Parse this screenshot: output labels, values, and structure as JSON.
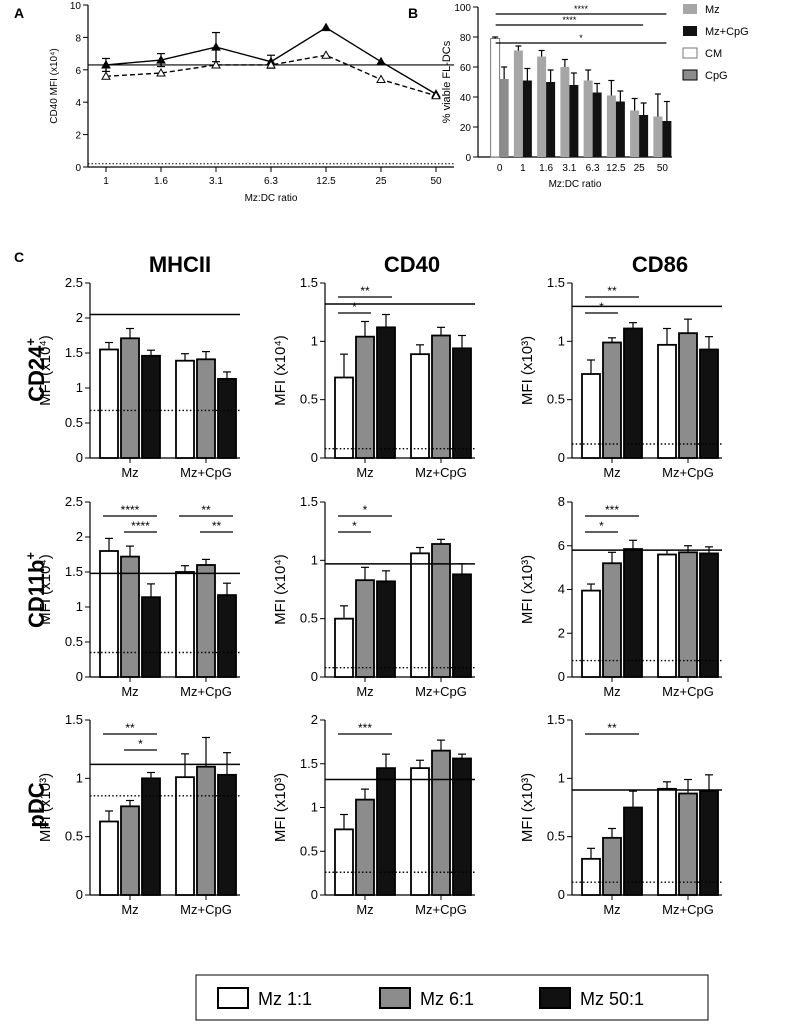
{
  "colors": {
    "white_bar": "#ffffff",
    "gray_bar": "#8c8c8c",
    "black_bar": "#111111",
    "light_gray": "#a6a6a6",
    "stroke": "#000000"
  },
  "panel_labels": {
    "a": "A",
    "b": "B",
    "c": "C"
  },
  "legend_bottom": [
    "Mz 1:1",
    "Mz 6:1",
    "Mz 50:1"
  ],
  "col_titles": [
    "MHCII",
    "CD40",
    "CD86"
  ],
  "row_titles": [
    "CD24",
    "CD11b",
    "pDC"
  ],
  "row_sups": [
    "+",
    "+",
    ""
  ],
  "chart_data": [
    {
      "id": "A",
      "type": "line",
      "xlabel": "Mz:DC ratio",
      "ylabel": "CD40 MFI (x10⁴)",
      "categories": [
        "1",
        "1.6",
        "3.1",
        "6.3",
        "12.5",
        "25",
        "50"
      ],
      "ylim": [
        0,
        10
      ],
      "yticks": [
        "0",
        "2",
        "4",
        "6",
        "8",
        "10"
      ],
      "hline": 6.3,
      "dotted": 0.2,
      "series": [
        {
          "name": "Mz",
          "values": [
            6.3,
            6.6,
            7.4,
            6.5,
            8.6,
            6.5,
            4.5
          ],
          "errors": [
            0.4,
            0.4,
            0.9,
            0.4,
            0,
            0,
            0
          ],
          "marker": "filled",
          "dash": false
        },
        {
          "name": "Mz+CpG",
          "values": [
            5.6,
            5.8,
            6.3,
            6.3,
            6.9,
            5.4,
            4.4
          ],
          "errors": [
            0,
            0,
            0,
            0,
            0,
            0,
            0
          ],
          "marker": "open",
          "dash": true
        }
      ]
    },
    {
      "id": "B",
      "type": "bar",
      "xlabel": "Mz:DC ratio",
      "ylabel": "% viable FL-DCs",
      "categories": [
        "0",
        "1",
        "1.6",
        "3.1",
        "6.3",
        "12.5",
        "25",
        "50"
      ],
      "ylim": [
        0,
        100
      ],
      "yticks": [
        "0",
        "20",
        "40",
        "60",
        "80",
        "100"
      ],
      "legend": [
        "Mz",
        "Mz+CpG",
        "CM",
        "CpG"
      ],
      "pairs": [
        [
          79,
          52
        ],
        [
          71,
          51
        ],
        [
          67,
          50
        ],
        [
          60,
          48
        ],
        [
          51,
          43
        ],
        [
          41,
          37
        ],
        [
          31,
          28
        ],
        [
          27,
          24
        ]
      ],
      "errors": [
        [
          1,
          8
        ],
        [
          3,
          8
        ],
        [
          4,
          8
        ],
        [
          5,
          8
        ],
        [
          7,
          6
        ],
        [
          10,
          7
        ],
        [
          8,
          8
        ],
        [
          15,
          13
        ]
      ],
      "sig": [
        {
          "label": "****",
          "from": 0,
          "to": 7
        },
        {
          "label": "****",
          "from": 0,
          "to": 6
        },
        {
          "label": "*",
          "from": 0,
          "to": 7
        }
      ]
    },
    {
      "id": "C-CD24-MHCII",
      "type": "bar",
      "ylabel": "MFI (x10⁴)",
      "groups": [
        "Mz",
        "Mz+CpG"
      ],
      "ylim": [
        0,
        2.5
      ],
      "yticks": [
        "0",
        "0.5",
        "1",
        "1.5",
        "2",
        "2.5"
      ],
      "hline": 2.05,
      "dotted": 0.68,
      "values": [
        [
          1.55,
          1.71,
          1.46
        ],
        [
          1.39,
          1.41,
          1.13
        ]
      ],
      "errors": [
        [
          0.1,
          0.14,
          0.08
        ],
        [
          0.1,
          0.11,
          0.1
        ]
      ],
      "sig": []
    },
    {
      "id": "C-CD24-CD40",
      "type": "bar",
      "ylabel": "MFI (x10⁴)",
      "groups": [
        "Mz",
        "Mz+CpG"
      ],
      "ylim": [
        0,
        1.5
      ],
      "yticks": [
        "0",
        "0.5",
        "1",
        "1.5"
      ],
      "hline": 1.32,
      "dotted": 0.08,
      "values": [
        [
          0.69,
          1.04,
          1.12
        ],
        [
          0.89,
          1.05,
          0.94
        ]
      ],
      "errors": [
        [
          0.2,
          0.13,
          0.11
        ],
        [
          0.08,
          0.07,
          0.11
        ]
      ],
      "sig": [
        {
          "label": "**",
          "g": 0,
          "from": 0,
          "to": 2
        },
        {
          "label": "*",
          "g": 0,
          "from": 0,
          "to": 1
        }
      ]
    },
    {
      "id": "C-CD24-CD86",
      "type": "bar",
      "ylabel": "MFI (x10³)",
      "groups": [
        "Mz",
        "Mz+CpG"
      ],
      "ylim": [
        0,
        1.5
      ],
      "yticks": [
        "0",
        "0.5",
        "1",
        "1.5"
      ],
      "hline": 1.3,
      "dotted": 0.12,
      "values": [
        [
          0.72,
          0.99,
          1.11
        ],
        [
          0.97,
          1.07,
          0.93
        ]
      ],
      "errors": [
        [
          0.12,
          0.04,
          0.05
        ],
        [
          0.14,
          0.12,
          0.11
        ]
      ],
      "sig": [
        {
          "label": "**",
          "g": 0,
          "from": 0,
          "to": 2
        },
        {
          "label": "*",
          "g": 0,
          "from": 0,
          "to": 1
        }
      ]
    },
    {
      "id": "C-CD11b-MHCII",
      "type": "bar",
      "ylabel": "MFI (x10⁴)",
      "groups": [
        "Mz",
        "Mz+CpG"
      ],
      "ylim": [
        0,
        2.5
      ],
      "yticks": [
        "0",
        "0.5",
        "1",
        "1.5",
        "2",
        "2.5"
      ],
      "hline": 1.48,
      "dotted": 0.35,
      "values": [
        [
          1.8,
          1.72,
          1.14
        ],
        [
          1.5,
          1.6,
          1.17
        ]
      ],
      "errors": [
        [
          0.18,
          0.15,
          0.19
        ],
        [
          0.09,
          0.08,
          0.17
        ]
      ],
      "sig": [
        {
          "label": "****",
          "g": 0,
          "from": 0,
          "to": 2
        },
        {
          "label": "****",
          "g": 0,
          "from": 1,
          "to": 2
        },
        {
          "label": "**",
          "g": 1,
          "from": 0,
          "to": 2
        },
        {
          "label": "**",
          "g": 1,
          "from": 1,
          "to": 2
        }
      ]
    },
    {
      "id": "C-CD11b-CD40",
      "type": "bar",
      "ylabel": "MFI (x10⁴)",
      "groups": [
        "Mz",
        "Mz+CpG"
      ],
      "ylim": [
        0,
        1.5
      ],
      "yticks": [
        "0",
        "0.5",
        "1",
        "1.5"
      ],
      "hline": 0.97,
      "dotted": 0.08,
      "values": [
        [
          0.5,
          0.83,
          0.82
        ],
        [
          1.06,
          1.14,
          0.88
        ]
      ],
      "errors": [
        [
          0.11,
          0.11,
          0.09
        ],
        [
          0.05,
          0.04,
          0.09
        ]
      ],
      "sig": [
        {
          "label": "*",
          "g": 0,
          "from": 0,
          "to": 2
        },
        {
          "label": "*",
          "g": 0,
          "from": 0,
          "to": 1
        }
      ]
    },
    {
      "id": "C-CD11b-CD86",
      "type": "bar",
      "ylabel": "MFI (x10³)",
      "groups": [
        "Mz",
        "Mz+CpG"
      ],
      "ylim": [
        0,
        8
      ],
      "yticks": [
        "0",
        "2",
        "4",
        "6",
        "8"
      ],
      "hline": 5.8,
      "dotted": 0.75,
      "values": [
        [
          3.95,
          5.2,
          5.85
        ],
        [
          5.6,
          5.7,
          5.65
        ]
      ],
      "errors": [
        [
          0.3,
          0.5,
          0.4
        ],
        [
          0.2,
          0.3,
          0.3
        ]
      ],
      "sig": [
        {
          "label": "***",
          "g": 0,
          "from": 0,
          "to": 2
        },
        {
          "label": "*",
          "g": 0,
          "from": 0,
          "to": 1
        }
      ]
    },
    {
      "id": "C-pDC-MHCII",
      "type": "bar",
      "ylabel": "MFI (x10³)",
      "groups": [
        "Mz",
        "Mz+CpG"
      ],
      "ylim": [
        0,
        1.5
      ],
      "yticks": [
        "0",
        "0.5",
        "1",
        "1.5"
      ],
      "hline": 1.12,
      "dotted": 0.85,
      "values": [
        [
          0.63,
          0.76,
          1.0
        ],
        [
          1.01,
          1.1,
          1.03
        ]
      ],
      "errors": [
        [
          0.09,
          0.05,
          0.05
        ],
        [
          0.2,
          0.25,
          0.19
        ]
      ],
      "sig": [
        {
          "label": "**",
          "g": 0,
          "from": 0,
          "to": 2
        },
        {
          "label": "*",
          "g": 0,
          "from": 1,
          "to": 2
        }
      ]
    },
    {
      "id": "C-pDC-CD40",
      "type": "bar",
      "ylabel": "MFI (x10³)",
      "groups": [
        "Mz",
        "Mz+CpG"
      ],
      "ylim": [
        0,
        2
      ],
      "yticks": [
        "0",
        "0.5",
        "1",
        "1.5",
        "2"
      ],
      "hline": 1.32,
      "dotted": 0.26,
      "values": [
        [
          0.75,
          1.09,
          1.45
        ],
        [
          1.45,
          1.65,
          1.56
        ]
      ],
      "errors": [
        [
          0.17,
          0.12,
          0.16
        ],
        [
          0.09,
          0.12,
          0.05
        ]
      ],
      "sig": [
        {
          "label": "***",
          "g": 0,
          "from": 0,
          "to": 2
        }
      ]
    },
    {
      "id": "C-pDC-CD86",
      "type": "bar",
      "ylabel": "MFI (x10³)",
      "groups": [
        "Mz",
        "Mz+CpG"
      ],
      "ylim": [
        0,
        1.5
      ],
      "yticks": [
        "0",
        "0.5",
        "1",
        "1.5"
      ],
      "hline": 0.9,
      "dotted": 0.11,
      "values": [
        [
          0.31,
          0.49,
          0.75
        ],
        [
          0.91,
          0.87,
          0.89
        ]
      ],
      "errors": [
        [
          0.09,
          0.08,
          0.14
        ],
        [
          0.06,
          0.12,
          0.14
        ]
      ],
      "sig": [
        {
          "label": "**",
          "g": 0,
          "from": 0,
          "to": 2
        }
      ]
    }
  ]
}
